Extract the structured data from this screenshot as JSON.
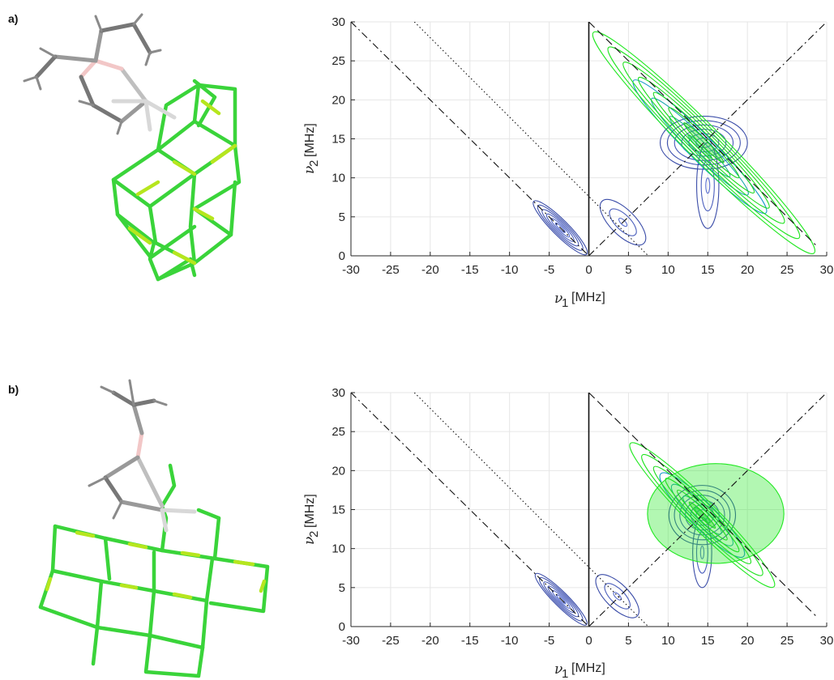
{
  "panel_labels": [
    "a)",
    "b)"
  ],
  "colors": {
    "low_contour": "#3a4ca8",
    "high_contour": "#22e822",
    "mid_contour": "#1d9bc9",
    "axis": "#262626",
    "grid": "#e6e6e6"
  },
  "chart_data": [
    {
      "type": "contour",
      "panel": "a)",
      "xlabel": {
        "symbol": "ν",
        "sub": "1",
        "unit": "[MHz]"
      },
      "ylabel": {
        "symbol": "ν",
        "sub": "2",
        "unit": "[MHz]"
      },
      "xlim": [
        -30,
        30
      ],
      "ylim": [
        0,
        30
      ],
      "xticks": [
        -30,
        -25,
        -20,
        -15,
        -10,
        -5,
        0,
        5,
        10,
        15,
        20,
        25,
        30
      ],
      "yticks": [
        0,
        5,
        10,
        15,
        20,
        25,
        30
      ],
      "grid": true,
      "reference_lines": [
        {
          "style": "dash-dot",
          "points": [
            [
              -30,
              30
            ],
            [
              0,
              0
            ]
          ]
        },
        {
          "style": "dash-dot",
          "points": [
            [
              0,
              0
            ],
            [
              30,
              30
            ]
          ]
        },
        {
          "style": "dashed",
          "points": [
            [
              0,
              30
            ],
            [
              28.6,
              1.4
            ]
          ]
        },
        {
          "style": "dotted",
          "points": [
            [
              -22,
              30
            ],
            [
              7.5,
              0
            ]
          ]
        },
        {
          "style": "solid",
          "points": [
            [
              0,
              0
            ],
            [
              0,
              30
            ]
          ]
        }
      ],
      "features": [
        {
          "level": "low",
          "center": [
            -3.6,
            3.6
          ],
          "rx": 1.0,
          "ry": 4.8,
          "angle": -45,
          "rings": 6
        },
        {
          "level": "low",
          "center": [
            4.3,
            4.3
          ],
          "rx": 1.6,
          "ry": 3.8,
          "angle": -45,
          "rings": 3
        },
        {
          "level": "low",
          "center": [
            14.5,
            14.5
          ],
          "rx": 5.5,
          "ry": 3.4,
          "angle": 0,
          "rings": 6
        },
        {
          "level": "low",
          "center": [
            15.0,
            9.0
          ],
          "rx": 1.4,
          "ry": 5.5,
          "angle": 0,
          "rings": 3
        },
        {
          "level": "mid",
          "center": [
            14.0,
            14.0
          ],
          "rx": 1.6,
          "ry": 12.0,
          "angle": -45,
          "rings": 4
        },
        {
          "level": "high",
          "center": [
            14.5,
            14.5
          ],
          "rx": 2.2,
          "ry": 20.0,
          "angle": -45,
          "rings": 7
        }
      ]
    },
    {
      "type": "contour",
      "panel": "b)",
      "xlabel": {
        "symbol": "ν",
        "sub": "1",
        "unit": "[MHz]"
      },
      "ylabel": {
        "symbol": "ν",
        "sub": "2",
        "unit": "[MHz]"
      },
      "xlim": [
        -30,
        30
      ],
      "ylim": [
        0,
        30
      ],
      "xticks": [
        -30,
        -25,
        -20,
        -15,
        -10,
        -5,
        0,
        5,
        10,
        15,
        20,
        25,
        30
      ],
      "yticks": [
        0,
        5,
        10,
        15,
        20,
        25,
        30
      ],
      "grid": true,
      "reference_lines": [
        {
          "style": "dash-dot",
          "points": [
            [
              -30,
              30
            ],
            [
              0,
              0
            ]
          ]
        },
        {
          "style": "dash-dot",
          "points": [
            [
              0,
              0
            ],
            [
              30,
              30
            ]
          ]
        },
        {
          "style": "dashed",
          "points": [
            [
              0,
              30
            ],
            [
              28.6,
              1.4
            ]
          ]
        },
        {
          "style": "dotted",
          "points": [
            [
              -22,
              30
            ],
            [
              7.5,
              0
            ]
          ]
        },
        {
          "style": "solid",
          "points": [
            [
              0,
              0
            ],
            [
              0,
              30
            ]
          ]
        }
      ],
      "features": [
        {
          "level": "low",
          "center": [
            -3.5,
            3.5
          ],
          "rx": 0.9,
          "ry": 4.6,
          "angle": -45,
          "rings": 6
        },
        {
          "level": "low",
          "center": [
            3.6,
            3.9
          ],
          "rx": 1.5,
          "ry": 3.6,
          "angle": -45,
          "rings": 3
        },
        {
          "level": "low",
          "center": [
            14.3,
            14.3
          ],
          "rx": 4.2,
          "ry": 3.8,
          "angle": 0,
          "rings": 6
        },
        {
          "level": "low",
          "center": [
            14.3,
            9.5
          ],
          "rx": 1.2,
          "ry": 4.5,
          "angle": 0,
          "rings": 3
        },
        {
          "level": "mid",
          "center": [
            14.3,
            14.3
          ],
          "rx": 1.6,
          "ry": 7.5,
          "angle": -45,
          "rings": 4
        },
        {
          "level": "high",
          "center": [
            14.3,
            14.3
          ],
          "rx": 1.8,
          "ry": 13.0,
          "angle": -45,
          "rings": 6
        },
        {
          "level": "high",
          "center": [
            16.0,
            14.5
          ],
          "rx": 8.6,
          "ry": 6.4,
          "angle": 0,
          "rings": 1
        }
      ]
    }
  ]
}
